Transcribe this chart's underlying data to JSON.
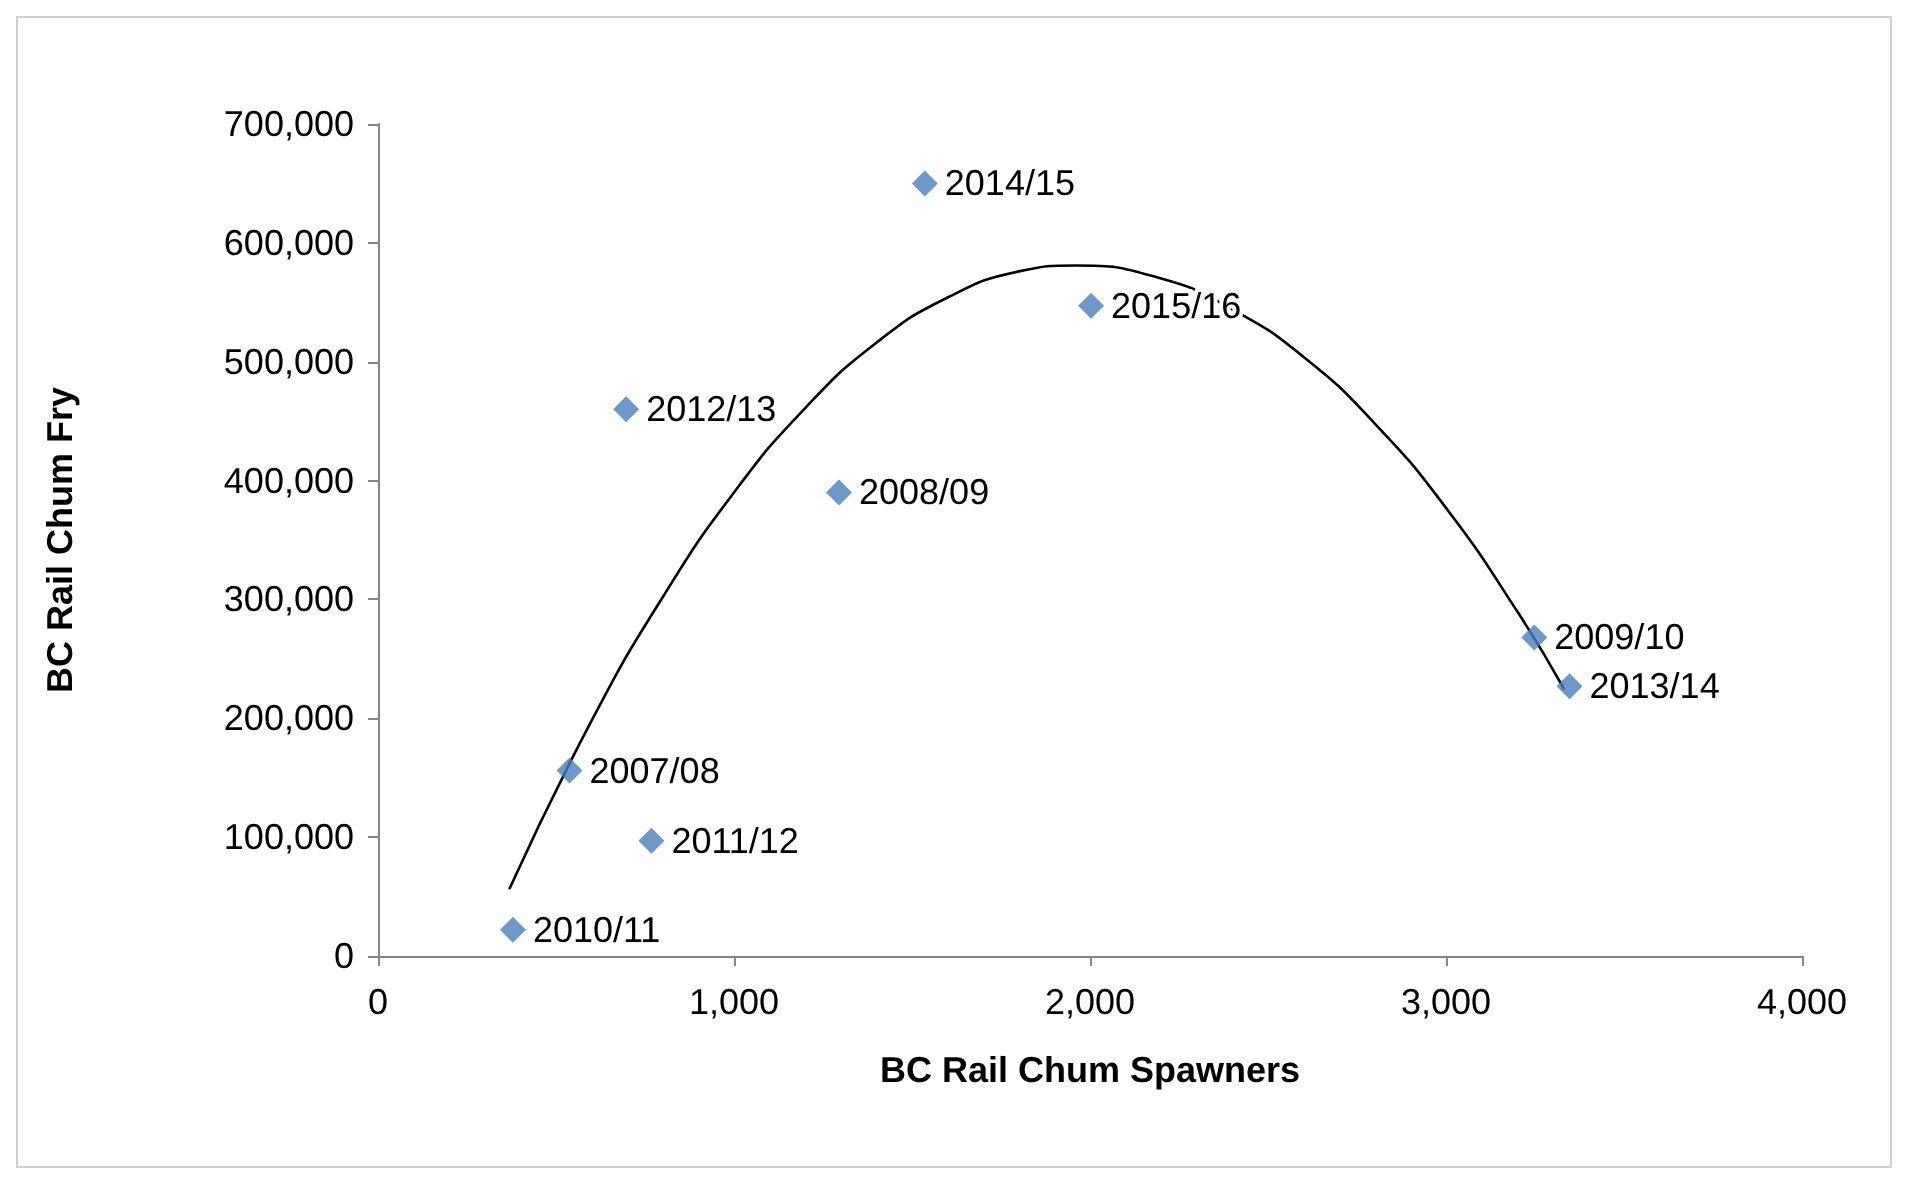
{
  "chart_data": {
    "type": "scatter",
    "xlabel": "BC Rail Chum Spawners",
    "ylabel": "BC Rail Chum Fry",
    "xlim": [
      0,
      4000
    ],
    "xticks": [
      {
        "value": 0,
        "label": "0"
      },
      {
        "value": 1000,
        "label": "1,000"
      },
      {
        "value": 2000,
        "label": "2,000"
      },
      {
        "value": 3000,
        "label": "3,000"
      },
      {
        "value": 4000,
        "label": "4,000"
      }
    ],
    "ylim": [
      0,
      700000
    ],
    "yticks": [
      {
        "value": 0,
        "label": "0"
      },
      {
        "value": 100000,
        "label": "100,000"
      },
      {
        "value": 200000,
        "label": "200,000"
      },
      {
        "value": 300000,
        "label": "300,000"
      },
      {
        "value": 400000,
        "label": "400,000"
      },
      {
        "value": 500000,
        "label": "500,000"
      },
      {
        "value": 600000,
        "label": "600,000"
      },
      {
        "value": 700000,
        "label": "700,000"
      }
    ],
    "marker": "diamond",
    "series": [
      {
        "color": "#4a7ebb",
        "x": [
          379,
          538,
          768,
          697,
          1295,
          1536,
          2003,
          3248,
          3347
        ],
        "values": [
          22000,
          156000,
          97000,
          460000,
          390000,
          650000,
          547000,
          268000,
          227000
        ]
      },
      {
        "type": "line",
        "color": "#000000",
        "marker": "none",
        "x": [
          370,
          600,
          800,
          1000,
          1200,
          1400,
          1600,
          1800,
          1960,
          2200,
          2400,
          2600,
          2800,
          3000,
          3200,
          3331
        ],
        "values": [
          57000,
          198000,
          302000,
          390000,
          461000,
          516000,
          554000,
          576000,
          581000,
          570000,
          544000,
          504000,
          448000,
          377000,
          290000,
          225000
        ]
      }
    ],
    "annotations": [
      {
        "text": "2010/11",
        "x": 379,
        "y": 22000
      },
      {
        "text": "2007/08",
        "x": 538,
        "y": 156000
      },
      {
        "text": "2011/12",
        "x": 768,
        "y": 97000
      },
      {
        "text": "2012/13",
        "x": 697,
        "y": 460000
      },
      {
        "text": "2008/09",
        "x": 1295,
        "y": 390000
      },
      {
        "text": "2014/15",
        "x": 1536,
        "y": 650000
      },
      {
        "text": "2015/16",
        "x": 2003,
        "y": 547000
      },
      {
        "text": "2009/10",
        "x": 3248,
        "y": 268000
      },
      {
        "text": "2013/14",
        "x": 3347,
        "y": 227000
      }
    ]
  }
}
